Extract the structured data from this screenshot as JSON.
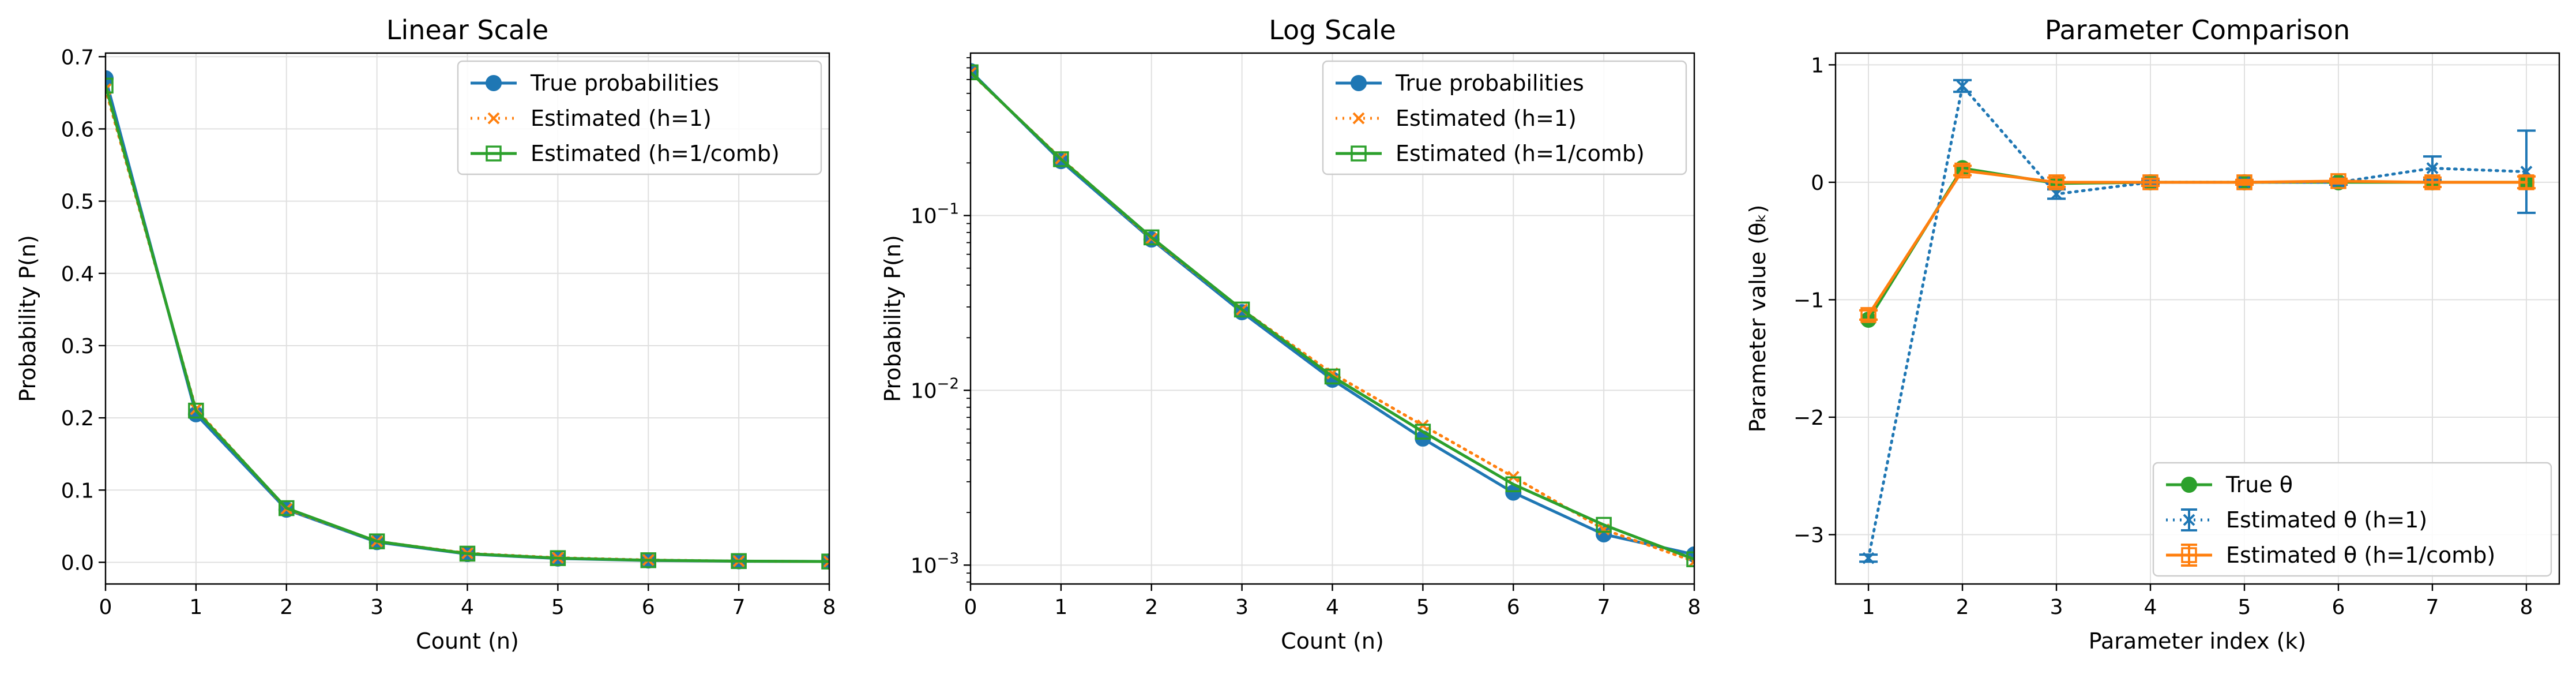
{
  "colors": {
    "blue": "#1f77b4",
    "orange": "#ff7f0e",
    "green": "#2ca02c",
    "grid": "#e0e0e0"
  },
  "chart_data": [
    {
      "type": "line",
      "title": "Linear Scale",
      "xlabel": "Count (n)",
      "ylabel": "Probability P(n)",
      "xlim": [
        0,
        8
      ],
      "ylim": [
        -0.03,
        0.705
      ],
      "yscale": "linear",
      "xticks": [
        0,
        1,
        2,
        3,
        4,
        5,
        6,
        7,
        8
      ],
      "yticks": [
        0.0,
        0.1,
        0.2,
        0.3,
        0.4,
        0.5,
        0.6,
        0.7
      ],
      "ytick_labels": [
        "0.0",
        "0.1",
        "0.2",
        "0.3",
        "0.4",
        "0.5",
        "0.6",
        "0.7"
      ],
      "grid": true,
      "legend": "top-right",
      "x": [
        0,
        1,
        2,
        3,
        4,
        5,
        6,
        7,
        8
      ],
      "series": [
        {
          "name": "True probabilities",
          "color": "blue",
          "marker": "circle",
          "line": "solid",
          "values": [
            0.67,
            0.205,
            0.073,
            0.028,
            0.0115,
            0.0053,
            0.0026,
            0.0015,
            0.00115
          ]
        },
        {
          "name": "Estimated (h=1)",
          "color": "orange",
          "marker": "x",
          "line": "dotted",
          "values": [
            0.655,
            0.212,
            0.074,
            0.029,
            0.0125,
            0.0063,
            0.0032,
            0.0016,
            0.00105
          ]
        },
        {
          "name": "Estimated (h=1/comb)",
          "color": "green",
          "marker": "square-open",
          "line": "solid",
          "values": [
            0.66,
            0.21,
            0.075,
            0.029,
            0.012,
            0.0058,
            0.0029,
            0.0017,
            0.00108
          ]
        }
      ]
    },
    {
      "type": "line",
      "title": "Log Scale",
      "xlabel": "Count (n)",
      "ylabel": "Probability P(n)",
      "xlim": [
        0,
        8
      ],
      "ylim": [
        0.00078,
        0.85
      ],
      "yscale": "log",
      "xticks": [
        0,
        1,
        2,
        3,
        4,
        5,
        6,
        7,
        8
      ],
      "yticks": [
        0.001,
        0.01,
        0.1
      ],
      "ytick_labels": [
        [
          "10",
          "−3"
        ],
        [
          "10",
          "−2"
        ],
        [
          "10",
          "−1"
        ]
      ],
      "grid": true,
      "legend": "top-right",
      "x": [
        0,
        1,
        2,
        3,
        4,
        5,
        6,
        7,
        8
      ],
      "series": [
        {
          "name": "True probabilities",
          "color": "blue",
          "marker": "circle",
          "line": "solid",
          "values": [
            0.67,
            0.205,
            0.073,
            0.028,
            0.0115,
            0.0053,
            0.0026,
            0.0015,
            0.00115
          ]
        },
        {
          "name": "Estimated (h=1)",
          "color": "orange",
          "marker": "x",
          "line": "dotted",
          "values": [
            0.655,
            0.212,
            0.074,
            0.029,
            0.0125,
            0.0063,
            0.0032,
            0.0016,
            0.00105
          ]
        },
        {
          "name": "Estimated (h=1/comb)",
          "color": "green",
          "marker": "square-open",
          "line": "solid",
          "values": [
            0.66,
            0.21,
            0.075,
            0.029,
            0.012,
            0.0058,
            0.0029,
            0.0017,
            0.00108
          ]
        }
      ]
    },
    {
      "type": "line",
      "title": "Parameter Comparison",
      "xlabel": "Parameter index (k)",
      "ylabel": "Parameter value (θₖ)",
      "xlim": [
        0.65,
        8.35
      ],
      "ylim": [
        -3.42,
        1.1
      ],
      "yscale": "linear",
      "xticks": [
        1,
        2,
        3,
        4,
        5,
        6,
        7,
        8
      ],
      "yticks": [
        -3,
        -2,
        -1,
        0,
        1
      ],
      "ytick_labels": [
        "−3",
        "−2",
        "−1",
        "0",
        "1"
      ],
      "grid": true,
      "legend": "bottom-right",
      "x": [
        1,
        2,
        3,
        4,
        5,
        6,
        7,
        8
      ],
      "series": [
        {
          "name": "True θ",
          "color": "green",
          "marker": "circle",
          "line": "solid",
          "values": [
            -1.17,
            0.12,
            -0.01,
            0.0,
            0.0,
            0.0,
            0.0,
            0.0
          ]
        },
        {
          "name": "Estimated θ (h=1)",
          "color": "blue",
          "marker": "x",
          "line": "dotted",
          "values": [
            -3.2,
            0.82,
            -0.1,
            0.0,
            0.0,
            0.0,
            0.12,
            0.09
          ],
          "errors": [
            0.03,
            0.05,
            0.04,
            0.02,
            0.02,
            0.02,
            0.1,
            0.35
          ]
        },
        {
          "name": "Estimated θ (h=1/comb)",
          "color": "orange",
          "marker": "square-open",
          "line": "solid",
          "values": [
            -1.13,
            0.1,
            0.0,
            0.0,
            0.0,
            0.01,
            0.0,
            0.0
          ],
          "errors": [
            0.04,
            0.04,
            0.04,
            0.03,
            0.02,
            0.02,
            0.04,
            0.05
          ]
        }
      ]
    }
  ]
}
